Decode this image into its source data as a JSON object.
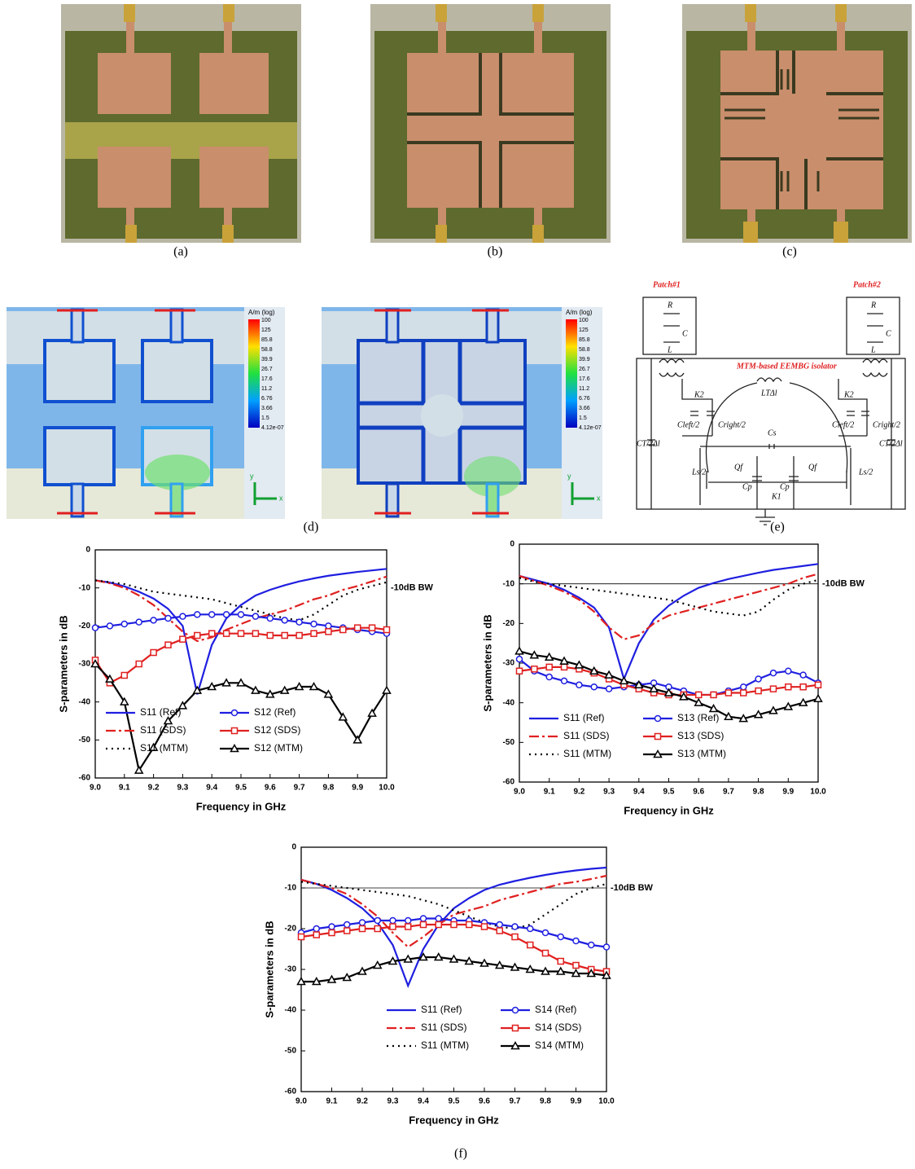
{
  "panel_labels": [
    "(a)",
    "(b)",
    "(c)",
    "(d)",
    "(e)",
    "(f)"
  ],
  "field_plot": {
    "unit": "A/m (log)",
    "scale": [
      "100",
      "125",
      "85.8",
      "58.8",
      "39.9",
      "26.7",
      "17.6",
      "11.2",
      "6.76",
      "3.66",
      "1.5",
      "4.12e-07"
    ],
    "axes": [
      "y",
      "x"
    ]
  },
  "circuit": {
    "patch1": "Patch#1",
    "patch2": "Patch#2",
    "isolator": "MTM-based EEMBG isolator",
    "components": [
      "R",
      "C",
      "L",
      "R",
      "C",
      "L",
      "K2",
      "LTΔl",
      "K2",
      "Cleft/2",
      "Cright/2",
      "Cleft/2",
      "Cright/2",
      "CT/2Δl",
      "CT/2Δl",
      "Cs",
      "Qf",
      "Qf",
      "Ls/2",
      "Ls/2",
      "Cp",
      "Cp",
      "K1"
    ]
  },
  "chart_data": [
    {
      "type": "line",
      "x_label": "Frequency in GHz",
      "y_label": "S-parameters in dB",
      "annotation": "-10dB BW",
      "xlim": [
        9,
        10
      ],
      "ylim": [
        -60,
        0
      ],
      "xticks": [
        {
          "value": 9,
          "label": "9.0"
        },
        9.1,
        9.2,
        9.3,
        9.4,
        9.5,
        9.6,
        9.7,
        9.8,
        9.9,
        {
          "value": 10,
          "label": "10.0"
        }
      ],
      "yticks": [
        -60,
        -50,
        -40,
        -30,
        -20,
        -10,
        0
      ],
      "x": [
        9,
        9.05,
        9.1,
        9.15,
        9.2,
        9.25,
        9.3,
        9.35,
        9.4,
        9.45,
        9.5,
        9.55,
        9.6,
        9.65,
        9.7,
        9.75,
        9.8,
        9.85,
        9.9,
        9.95,
        10
      ],
      "series": [
        {
          "name": "S11 (Ref)",
          "color": "#1f1fe0",
          "dash": "solid",
          "marker": "none",
          "values": [
            -8,
            -8.6,
            -9.6,
            -11,
            -12.8,
            -15.5,
            -20,
            -38,
            -25,
            -18,
            -14.5,
            -12,
            -10.5,
            -9.3,
            -8.3,
            -7.5,
            -6.8,
            -6.3,
            -5.8,
            -5.4,
            -5
          ]
        },
        {
          "name": "S11 (SDS)",
          "color": "#e02020",
          "dash": "dashdot",
          "marker": "none",
          "values": [
            -8,
            -8.8,
            -10,
            -12,
            -14.5,
            -18,
            -21.5,
            -24,
            -23,
            -21,
            -19.5,
            -18,
            -17,
            -16,
            -14.5,
            -13,
            -12,
            -10.5,
            -9.5,
            -8.3,
            -7
          ]
        },
        {
          "name": "S11 (MTM)",
          "color": "#000000",
          "dash": "dot",
          "marker": "none",
          "values": [
            -8,
            -8.5,
            -9,
            -10,
            -11,
            -11.5,
            -12,
            -12.5,
            -13,
            -14,
            -15,
            -16,
            -17,
            -18,
            -18.5,
            -17,
            -14.5,
            -12,
            -10.5,
            -9.5,
            -8.5
          ]
        },
        {
          "name": "S12 (Ref)",
          "color": "#1f1fe0",
          "dash": "solid",
          "marker": "circle",
          "values": [
            -20.5,
            -20,
            -19.5,
            -19,
            -18.5,
            -18,
            -17.5,
            -17,
            -17,
            -17,
            -17,
            -17.5,
            -18,
            -18.5,
            -19,
            -19.5,
            -20,
            -20.5,
            -21,
            -21.5,
            -22
          ]
        },
        {
          "name": "S12 (SDS)",
          "color": "#e02020",
          "dash": "solid",
          "marker": "square",
          "values": [
            -29,
            -35,
            -33,
            -30,
            -27,
            -25,
            -23.5,
            -22.5,
            -22,
            -22,
            -22,
            -22,
            -22.5,
            -22.5,
            -22.5,
            -22,
            -21.5,
            -21,
            -20.5,
            -20.5,
            -21
          ]
        },
        {
          "name": "S12 (MTM)",
          "color": "#000000",
          "dash": "solid",
          "marker": "triangle",
          "values": [
            -30,
            -34,
            -40,
            -58,
            -52,
            -45,
            -41,
            -37,
            -36,
            -35,
            -35,
            -37,
            -38,
            -37,
            -36,
            -36,
            -38,
            -44,
            -50,
            -43,
            -37
          ]
        }
      ]
    },
    {
      "type": "line",
      "x_label": "Frequency in GHz",
      "y_label": "S-parameters in dB",
      "annotation": "-10dB BW",
      "ref_line": -10,
      "xlim": [
        9,
        10
      ],
      "ylim": [
        -60,
        0
      ],
      "xticks": [
        {
          "value": 9,
          "label": "9.0"
        },
        9.1,
        9.2,
        9.3,
        9.4,
        9.5,
        9.6,
        9.7,
        9.8,
        9.9,
        {
          "value": 10,
          "label": "10.0"
        }
      ],
      "yticks": [
        -60,
        -50,
        -40,
        -30,
        -20,
        -10,
        0
      ],
      "x": [
        9,
        9.05,
        9.1,
        9.15,
        9.2,
        9.25,
        9.3,
        9.35,
        9.4,
        9.45,
        9.5,
        9.55,
        9.6,
        9.65,
        9.7,
        9.75,
        9.8,
        9.85,
        9.9,
        9.95,
        10
      ],
      "series": [
        {
          "name": "S11 (Ref)",
          "color": "#1f1fe0",
          "dash": "solid",
          "marker": "none",
          "values": [
            -8,
            -9,
            -10,
            -11.5,
            -13.5,
            -16,
            -21,
            -34,
            -25,
            -19,
            -15.5,
            -13,
            -11,
            -9.8,
            -8.8,
            -8,
            -7.2,
            -6.5,
            -6,
            -5.5,
            -5
          ]
        },
        {
          "name": "S11 (SDS)",
          "color": "#e02020",
          "dash": "dashdot",
          "marker": "none",
          "values": [
            -8,
            -9.3,
            -10.5,
            -12,
            -14,
            -17,
            -21,
            -24,
            -23,
            -20,
            -18,
            -17,
            -16,
            -15,
            -14,
            -13,
            -12,
            -11,
            -10,
            -8.5,
            -7.5
          ]
        },
        {
          "name": "S11 (MTM)",
          "color": "#000000",
          "dash": "dot",
          "marker": "none",
          "values": [
            -8.5,
            -9.5,
            -10,
            -10.5,
            -11,
            -11.5,
            -12,
            -12.5,
            -13,
            -13.5,
            -14,
            -15,
            -16,
            -17,
            -17.5,
            -18,
            -17,
            -14,
            -11.5,
            -10,
            -9
          ]
        },
        {
          "name": "S13 (Ref)",
          "color": "#1f1fe0",
          "dash": "solid",
          "marker": "circle",
          "values": [
            -29,
            -32,
            -33.5,
            -34.5,
            -35.5,
            -36,
            -36.5,
            -36,
            -35.5,
            -35,
            -36,
            -37,
            -38,
            -38,
            -37,
            -36,
            -34,
            -32.5,
            -32,
            -33,
            -35
          ]
        },
        {
          "name": "S13 (SDS)",
          "color": "#e02020",
          "dash": "solid",
          "marker": "square",
          "values": [
            -32,
            -31.5,
            -31,
            -31,
            -31.5,
            -32.5,
            -34,
            -35.5,
            -36.5,
            -37.5,
            -38,
            -38,
            -38,
            -38,
            -37.5,
            -37.5,
            -37,
            -36.5,
            -36,
            -36,
            -35.5
          ]
        },
        {
          "name": "S13 (MTM)",
          "color": "#000000",
          "dash": "solid",
          "marker": "triangle",
          "values": [
            -27,
            -28,
            -28.5,
            -29.5,
            -30.5,
            -32,
            -33,
            -34.5,
            -35.5,
            -36.5,
            -37.5,
            -38.5,
            -40,
            -41.5,
            -43.5,
            -44,
            -43,
            -42,
            -41,
            -40,
            -39
          ]
        }
      ]
    },
    {
      "type": "line",
      "x_label": "Frequency in GHz",
      "y_label": "S-parameters in dB",
      "annotation": "-10dB BW",
      "ref_line": -10,
      "xlim": [
        9,
        10
      ],
      "ylim": [
        -60,
        0
      ],
      "xticks": [
        {
          "value": 9,
          "label": "9.0"
        },
        9.1,
        9.2,
        9.3,
        9.4,
        9.5,
        9.6,
        9.7,
        9.8,
        9.9,
        {
          "value": 10,
          "label": "10.0"
        }
      ],
      "yticks": [
        -60,
        -50,
        -40,
        -30,
        -20,
        -10,
        0
      ],
      "x": [
        9,
        9.05,
        9.1,
        9.15,
        9.2,
        9.25,
        9.3,
        9.35,
        9.4,
        9.45,
        9.5,
        9.55,
        9.6,
        9.65,
        9.7,
        9.75,
        9.8,
        9.85,
        9.9,
        9.95,
        10
      ],
      "series": [
        {
          "name": "S11 (Ref)",
          "color": "#1f1fe0",
          "dash": "solid",
          "marker": "none",
          "values": [
            -8,
            -9,
            -10.5,
            -12.5,
            -15,
            -18.5,
            -24,
            -34,
            -25,
            -19,
            -15,
            -12.5,
            -10.5,
            -9.2,
            -8.3,
            -7.5,
            -6.8,
            -6.2,
            -5.7,
            -5.3,
            -5
          ]
        },
        {
          "name": "S11 (SDS)",
          "color": "#e02020",
          "dash": "dashdot",
          "marker": "none",
          "values": [
            -8,
            -9,
            -10,
            -11.5,
            -14,
            -17,
            -21,
            -24.5,
            -22,
            -19,
            -16.5,
            -15.5,
            -14.5,
            -13,
            -12,
            -11,
            -10,
            -9,
            -8.5,
            -7.8,
            -7
          ]
        },
        {
          "name": "S11 (MTM)",
          "color": "#000000",
          "dash": "dot",
          "marker": "none",
          "values": [
            -8.5,
            -9,
            -9.5,
            -10,
            -10.5,
            -11,
            -11.5,
            -12,
            -13,
            -14,
            -15.5,
            -17,
            -18.5,
            -19.5,
            -20,
            -19,
            -16.5,
            -14,
            -11.5,
            -10,
            -9
          ]
        },
        {
          "name": "S14 (Ref)",
          "color": "#1f1fe0",
          "dash": "solid",
          "marker": "circle",
          "values": [
            -21,
            -20,
            -19.5,
            -19,
            -18.5,
            -18,
            -18,
            -18,
            -17.5,
            -17.5,
            -18,
            -18,
            -18.5,
            -19,
            -19.5,
            -20,
            -21,
            -22,
            -23,
            -24,
            -24.5
          ]
        },
        {
          "name": "S14 (SDS)",
          "color": "#e02020",
          "dash": "solid",
          "marker": "square",
          "values": [
            -22,
            -21.5,
            -21,
            -20.5,
            -20,
            -20,
            -19.5,
            -19.5,
            -19,
            -19,
            -19,
            -19,
            -19.5,
            -20.5,
            -22,
            -24,
            -26,
            -28,
            -29,
            -30,
            -30.5
          ]
        },
        {
          "name": "S14 (MTM)",
          "color": "#000000",
          "dash": "solid",
          "marker": "triangle",
          "values": [
            -33,
            -33,
            -32.5,
            -32,
            -30.5,
            -29,
            -28,
            -27.5,
            -27,
            -27,
            -27.5,
            -28,
            -28.5,
            -29,
            -29.5,
            -30,
            -30.5,
            -30.5,
            -31,
            -31,
            -31.5
          ]
        }
      ]
    }
  ]
}
